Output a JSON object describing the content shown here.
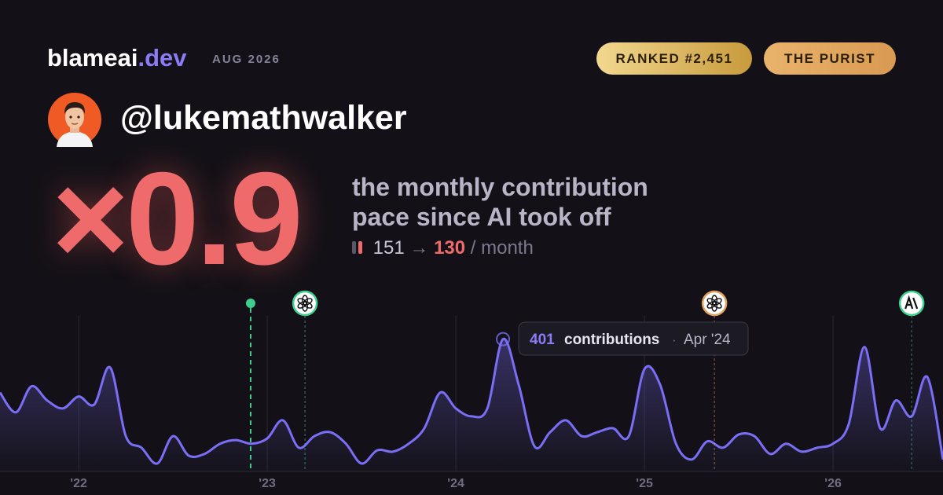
{
  "header": {
    "brand": "blameai",
    "brand_tld": ".dev",
    "period": "AUG 2026",
    "badges": [
      "RANKED #2,451",
      "THE PURIST"
    ]
  },
  "user": {
    "handle": "@lukemathwalker"
  },
  "stat": {
    "multiplier": "×0.9",
    "caption_lines": [
      "the monthly contribution",
      "pace since AI took off"
    ],
    "before": 151,
    "arrow": "→",
    "after": 130,
    "unit": "/ month"
  },
  "chart_data": {
    "type": "area",
    "x": [
      2021.583,
      2021.667,
      2021.75,
      2021.833,
      2021.917,
      2022,
      2022.083,
      2022.167,
      2022.25,
      2022.333,
      2022.417,
      2022.5,
      2022.583,
      2022.667,
      2022.75,
      2022.833,
      2022.917,
      2023,
      2023.083,
      2023.167,
      2023.25,
      2023.333,
      2023.417,
      2023.5,
      2023.583,
      2023.667,
      2023.75,
      2023.833,
      2023.917,
      2024,
      2024.083,
      2024.167,
      2024.25,
      2024.333,
      2024.417,
      2024.5,
      2024.583,
      2024.667,
      2024.75,
      2024.833,
      2024.917,
      2025,
      2025.083,
      2025.167,
      2025.25,
      2025.333,
      2025.417,
      2025.5,
      2025.583,
      2025.667,
      2025.75,
      2025.833,
      2025.917,
      2026,
      2026.083,
      2026.167,
      2026.25,
      2026.333,
      2026.417,
      2026.5,
      2026.583
    ],
    "series": [
      {
        "color": "#7b6ef6",
        "values": [
          239,
          179,
          258,
          215,
          191,
          227,
          203,
          315,
          107,
          72,
          24,
          107,
          48,
          53,
          84,
          95,
          84,
          100,
          155,
          72,
          107,
          119,
          84,
          24,
          64,
          60,
          84,
          131,
          239,
          191,
          167,
          191,
          401,
          263,
          76,
          119,
          155,
          107,
          119,
          131,
          107,
          310,
          263,
          84,
          36,
          91,
          72,
          112,
          107,
          53,
          84,
          60,
          72,
          84,
          143,
          377,
          131,
          215,
          167,
          286,
          36
        ]
      }
    ],
    "xlim": [
      2021.583,
      2026.583
    ],
    "xticks": [
      {
        "value": 2022,
        "label": "'22"
      },
      {
        "value": 2023,
        "label": "'23"
      },
      {
        "value": 2024,
        "label": "'24"
      },
      {
        "value": 2025,
        "label": "'25"
      },
      {
        "value": 2026,
        "label": "'26"
      }
    ],
    "ylim": [
      0,
      500
    ],
    "grid": true,
    "markers": [
      {
        "x": 2022.912,
        "color": "#3ecf8e",
        "icon": "dot"
      },
      {
        "x": 2023.2,
        "color": "#3ecf8e",
        "icon": "openai"
      },
      {
        "x": 2025.371,
        "color": "#e0a060",
        "icon": "openai"
      },
      {
        "x": 2026.417,
        "color": "#3ecf8e",
        "icon": "anthropic"
      }
    ],
    "tooltip": {
      "label": "contributions",
      "separator": "·",
      "date": "Apr '24"
    }
  }
}
